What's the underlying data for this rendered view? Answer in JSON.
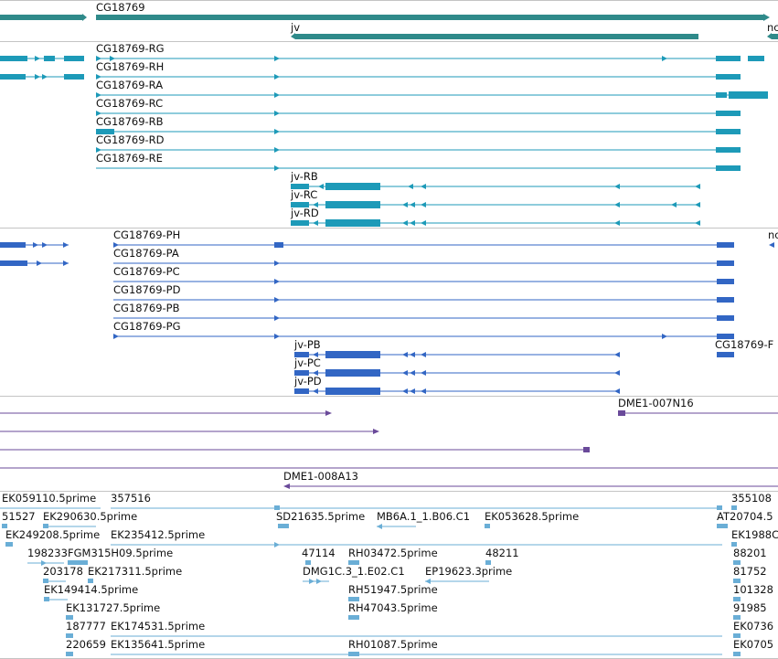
{
  "colors": {
    "gene": "#2f8a8a",
    "transcript_rna": "#1d9ab8",
    "protein": "#3266c4",
    "clone": "#6a4a9a",
    "est": "#6aaed6",
    "divider": "#c4c4c4"
  },
  "gene_track": {
    "labels": {
      "g1": "CG18769",
      "g2": "jv",
      "g3": "nc"
    }
  },
  "transcripts_track": {
    "cg": [
      "CG18769-RG",
      "CG18769-RH",
      "CG18769-RA",
      "CG18769-RC",
      "CG18769-RB",
      "CG18769-RD",
      "CG18769-RE"
    ],
    "jv": [
      "jv-RB",
      "jv-RC",
      "jv-RD"
    ]
  },
  "proteins_track": {
    "cg": [
      "CG18769-PH",
      "CG18769-PA",
      "CG18769-PC",
      "CG18769-PD",
      "CG18769-PB",
      "CG18769-PG"
    ],
    "jv": [
      "jv-PB",
      "jv-PC",
      "jv-PD"
    ],
    "right_cut": "CG18769-F",
    "right_top": "nc"
  },
  "clones_track": {
    "labels": [
      "DME1-007N16",
      "DME1-008A13"
    ]
  },
  "ests_track": {
    "labels": [
      "EK059110.5prime",
      "357516",
      "355108",
      "51527",
      "EK290630.5prime",
      "SD21635.5prime",
      "MB6A.1_1.B06.C1",
      "EK053628.5prime",
      "AT20704.5",
      "EK249208.5prime",
      "EK235412.5prime",
      "EK1988C",
      "198233",
      "FGM315H09.5prime",
      "47114",
      "RH03472.5prime",
      "48211",
      "88201",
      "203178",
      "EK217311.5prime",
      "DMG1C.3_1.E02.C1",
      "EP19623.3prime",
      "81752",
      "EK149414.5prime",
      "RH51947.5prime",
      "101328",
      "EK131727.5prime",
      "RH47043.5prime",
      "91985",
      "187777",
      "EK174531.5prime",
      "EK0736",
      "220659",
      "EK135641.5prime",
      "RH01087.5prime",
      "EK0705"
    ]
  }
}
